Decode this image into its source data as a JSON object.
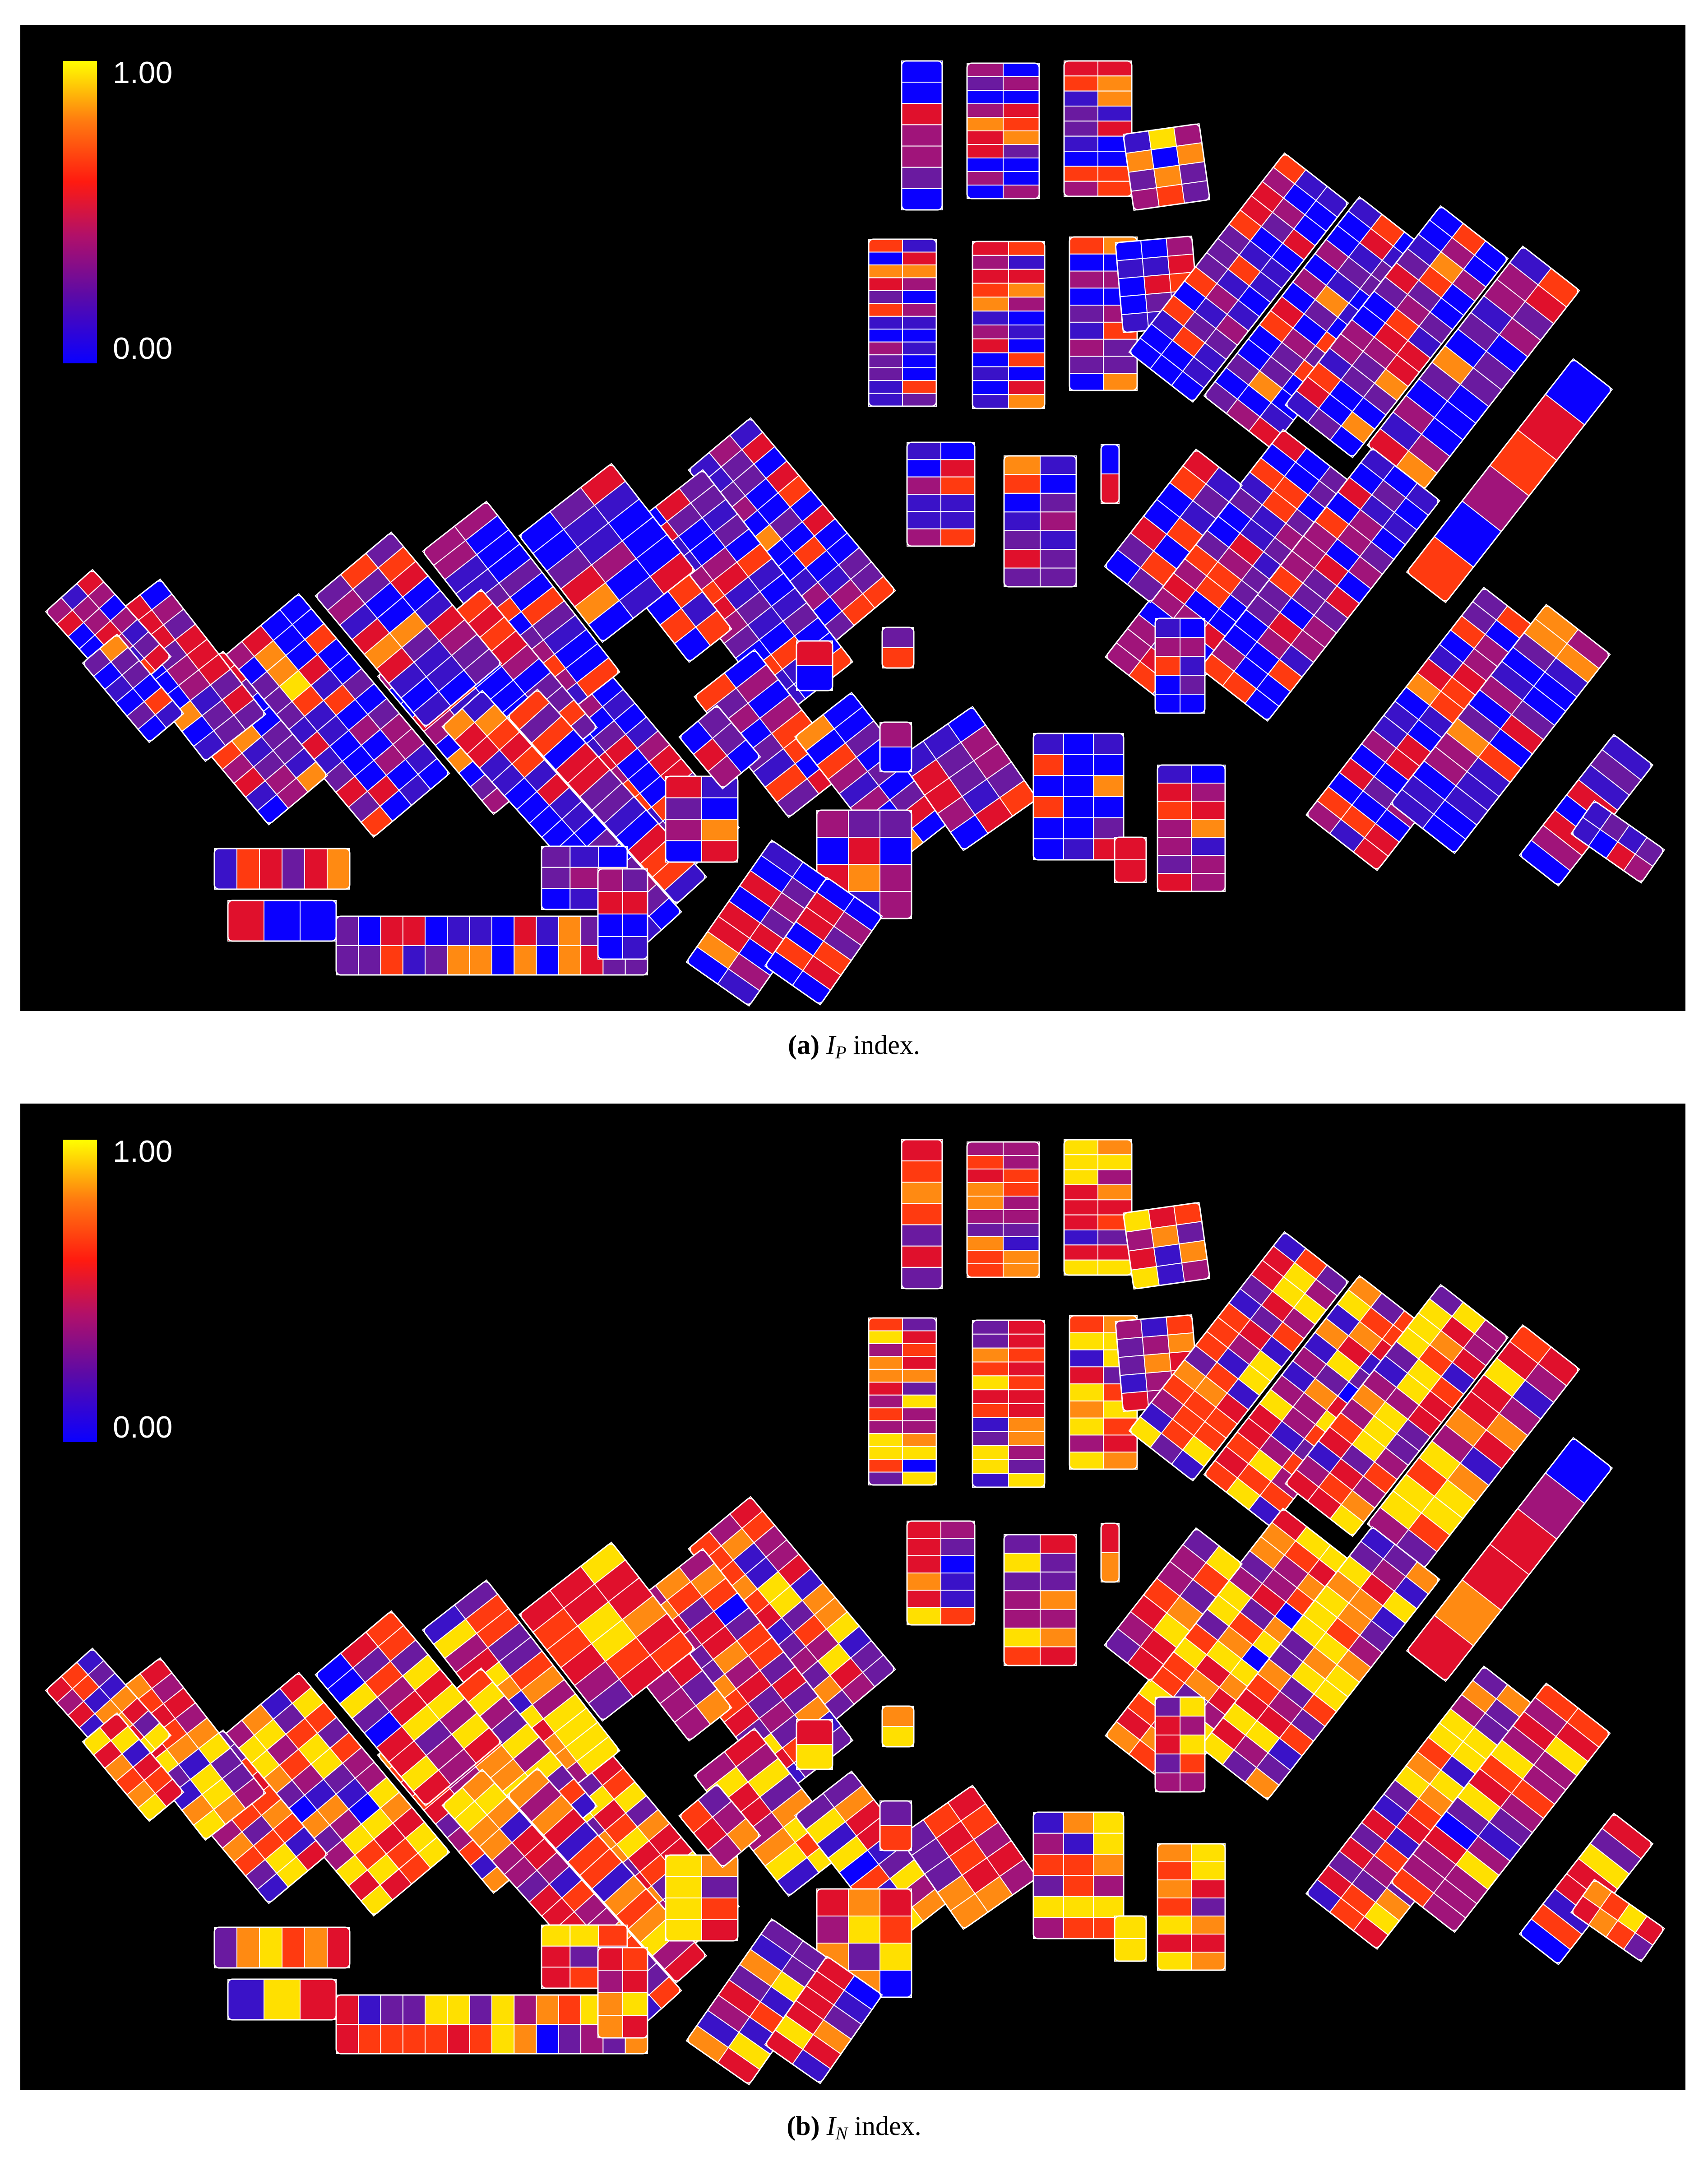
{
  "panels": [
    {
      "id": "a",
      "caption_tag": "(a)",
      "caption_symbol": "I",
      "caption_subscript": "P",
      "caption_text": " index.",
      "colorbar_max": "1.00",
      "colorbar_min": "0.00",
      "palette": [
        "#0a00ff",
        "#3a12c8",
        "#6a1aa0",
        "#a0147a",
        "#e0102c",
        "#ff3a10",
        "#ff8a12",
        "#ffe000"
      ],
      "palette_bias": 0.32
    },
    {
      "id": "b",
      "caption_tag": "(b)",
      "caption_symbol": "I",
      "caption_subscript": "N",
      "caption_text": " index.",
      "colorbar_max": "1.00",
      "colorbar_min": "0.00",
      "palette": [
        "#0a00ff",
        "#3a12c8",
        "#6a1aa0",
        "#a0147a",
        "#e0102c",
        "#ff3a10",
        "#ff8a12",
        "#ffe000"
      ],
      "palette_bias": 0.62
    }
  ],
  "colors": {
    "background": "#000000",
    "block_outline": "#ffffff",
    "low": "#0a00ff",
    "high": "#ffff00"
  }
}
